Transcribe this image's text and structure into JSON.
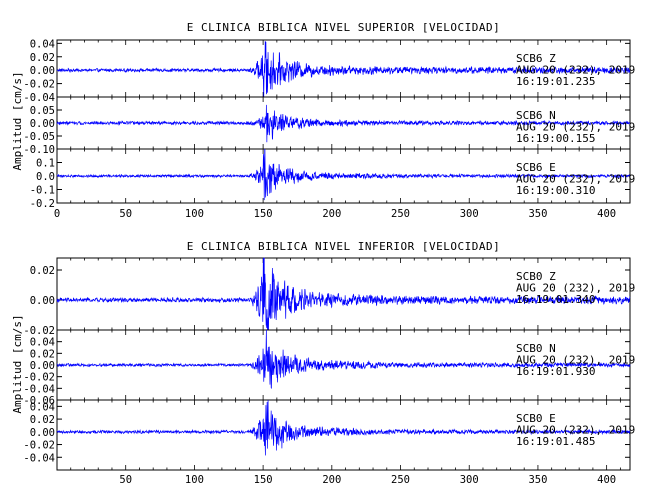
{
  "chart_data": [
    {
      "type": "line",
      "title": "E CLINICA BIBLICA NIVEL SUPERIOR [VELOCIDAD]",
      "ylabel": "Amplitud [cm/s]",
      "xlim": [
        0,
        417
      ],
      "x_ticks": [
        "0",
        "50",
        "100",
        "150",
        "200",
        "250",
        "300",
        "350",
        "400"
      ],
      "trace_color": "#0000ff",
      "series": [
        {
          "name": "SCB6 Z",
          "date": "AUG 20 (232), 2019",
          "start_time": "16:19:01.235",
          "ylim": [
            -0.04,
            0.045
          ],
          "y_ticks": [
            "-0.04",
            "-0.02",
            "0.00",
            "0.02",
            "0.04"
          ],
          "peak_time": 150,
          "peak_amplitude": 0.04,
          "pre_event_amplitude": 0.002,
          "coda_amplitude": 0.004
        },
        {
          "name": "SCB6 N",
          "date": "AUG 20 (232), 2019",
          "start_time": "16:19:00.155",
          "ylim": [
            -0.1,
            0.1
          ],
          "y_ticks": [
            "-0.10",
            "-0.05",
            "0.00",
            "0.05"
          ],
          "peak_time": 152,
          "peak_amplitude": 0.065,
          "pre_event_amplitude": 0.005,
          "coda_amplitude": 0.006
        },
        {
          "name": "SCB6 E",
          "date": "AUG 20 (232), 2019",
          "start_time": "16:19:00.310",
          "ylim": [
            -0.2,
            0.2
          ],
          "y_ticks": [
            "-0.2",
            "-0.1",
            "0.0",
            "0.1"
          ],
          "peak_time": 150,
          "peak_amplitude": 0.16,
          "pre_event_amplitude": 0.008,
          "coda_amplitude": 0.01
        }
      ]
    },
    {
      "type": "line",
      "title": "E CLINICA BIBLICA NIVEL INFERIOR [VELOCIDAD]",
      "ylabel": "Amplitud [cm/s]",
      "xlim": [
        0,
        417
      ],
      "x_ticks": [
        "50",
        "100",
        "150",
        "200",
        "250",
        "300",
        "350",
        "400"
      ],
      "trace_color": "#0000ff",
      "series": [
        {
          "name": "SCB0 Z",
          "date": "AUG 20 (232), 2019",
          "start_time": "16:19:01.340",
          "ylim": [
            -0.02,
            0.028
          ],
          "y_ticks": [
            "-0.02",
            "0.00",
            "0.02"
          ],
          "peak_time": 150,
          "peak_amplitude": 0.027,
          "pre_event_amplitude": 0.0012,
          "coda_amplitude": 0.002
        },
        {
          "name": "SCB0 N",
          "date": "AUG 20 (232), 2019",
          "start_time": "16:19:01.930",
          "ylim": [
            -0.06,
            0.06
          ],
          "y_ticks": [
            "-0.06",
            "-0.04",
            "-0.02",
            "0.00",
            "0.02",
            "0.04"
          ],
          "peak_time": 151,
          "peak_amplitude": 0.055,
          "pre_event_amplitude": 0.002,
          "coda_amplitude": 0.003
        },
        {
          "name": "SCB0 E",
          "date": "AUG 20 (232), 2019",
          "start_time": "16:19:01.485",
          "ylim": [
            -0.06,
            0.05
          ],
          "y_ticks": [
            "-0.04",
            "-0.02",
            "0.00",
            "0.02",
            "0.04"
          ],
          "peak_time": 150,
          "peak_amplitude": 0.05,
          "pre_event_amplitude": 0.002,
          "coda_amplitude": 0.0025
        }
      ]
    }
  ]
}
